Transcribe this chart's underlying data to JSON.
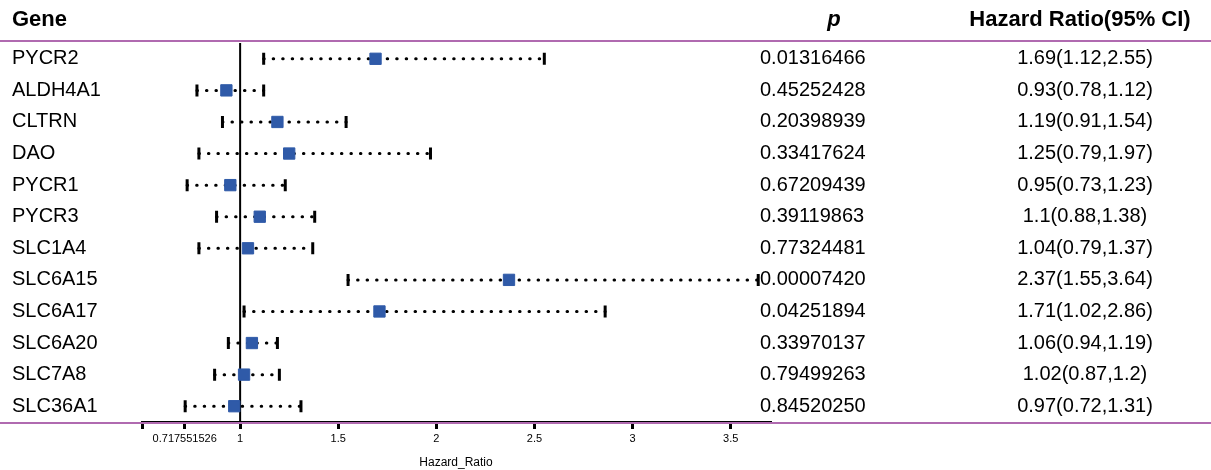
{
  "chart_data": {
    "type": "scatter",
    "orientation": "horizontal",
    "ylabel": "Gene",
    "xlabel": "Hazard_Ratio",
    "categories": [
      "PYCR2",
      "ALDH4A1",
      "CLTRN",
      "DAO",
      "PYCR1",
      "PYCR3",
      "SLC1A4",
      "SLC6A15",
      "SLC6A17",
      "SLC6A20",
      "SLC7A8",
      "SLC36A1"
    ],
    "color": "#2f5aa8",
    "values": [
      1.69,
      0.93,
      1.19,
      1.25,
      0.95,
      1.1,
      1.04,
      2.37,
      1.71,
      1.06,
      1.02,
      0.97
    ],
    "errors": [
      [
        1.12,
        2.55
      ],
      [
        0.78,
        1.12
      ],
      [
        0.91,
        1.54
      ],
      [
        0.79,
        1.97
      ],
      [
        0.73,
        1.23
      ],
      [
        0.88,
        1.38
      ],
      [
        0.79,
        1.37
      ],
      [
        1.55,
        3.64
      ],
      [
        1.02,
        2.86
      ],
      [
        0.94,
        1.19
      ],
      [
        0.87,
        1.2
      ],
      [
        0.72,
        1.31
      ]
    ],
    "value_labels": [
      "1.69(1.12,2.55)",
      "0.93(0.78,1.12)",
      "1.19(0.91,1.54)",
      "1.25(0.79,1.97)",
      "0.95(0.73,1.23)",
      "1.1(0.88,1.38)",
      "1.04(0.79,1.37)",
      "2.37(1.55,3.64)",
      "1.71(1.02,2.86)",
      "1.06(0.94,1.19)",
      "1.02(0.87,1.2)",
      "0.97(0.72,1.31)"
    ],
    "annotations": [
      "p",
      "Hazard Ratio(95% CI)",
      "0.01316466",
      "0.45252428",
      "0.20398939",
      "0.33417624",
      "0.67209439",
      "0.39119863",
      "0.77324481",
      "0.00007420",
      "0.04251894",
      "0.33970137",
      "0.79499263",
      "0.84520250"
    ],
    "xlim": [
      0.5,
      3.7
    ],
    "xticks": [
      {
        "value": 0.5,
        "label": null
      },
      0.717551526,
      1,
      1.5,
      2,
      2.5,
      3,
      3.5
    ],
    "ref_lines": [
      {
        "axis": "x",
        "value": 1,
        "color": "#000000"
      }
    ],
    "marker": "square",
    "legend": false,
    "grid": false
  }
}
